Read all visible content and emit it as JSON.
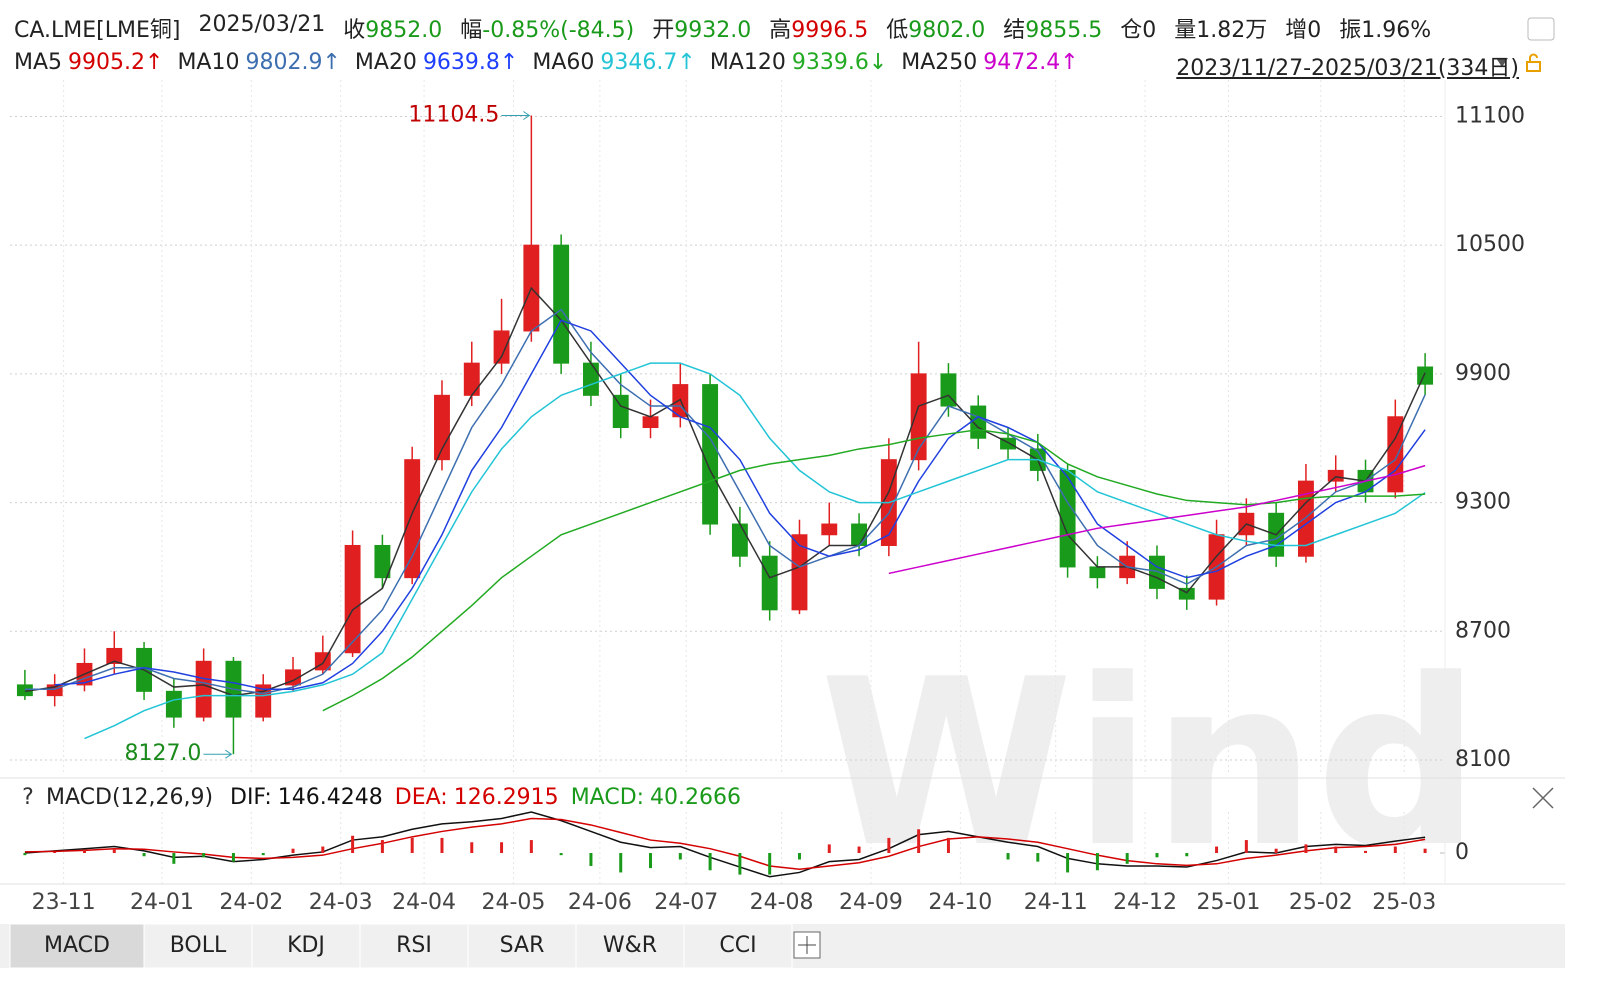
{
  "header": {
    "symbol": "CA.LME[LME铜]",
    "date": "2025/03/21",
    "quotes": [
      {
        "label": "收",
        "value": "9852.0",
        "color": "#1a9a1a"
      },
      {
        "label": "幅",
        "value": "-0.85%(-84.5)",
        "color": "#1a9a1a"
      },
      {
        "label": "开",
        "value": "9932.0",
        "color": "#1a9a1a"
      },
      {
        "label": "高",
        "value": "9996.5",
        "color": "#d40000"
      },
      {
        "label": "低",
        "value": "9802.0",
        "color": "#1a9a1a"
      },
      {
        "label": "结",
        "value": "9855.5",
        "color": "#1a9a1a"
      },
      {
        "label": "仓",
        "value": "0",
        "color": "#222222"
      },
      {
        "label": "量",
        "value": "1.82万",
        "color": "#222222"
      },
      {
        "label": "增",
        "value": "0",
        "color": "#222222"
      },
      {
        "label": "振",
        "value": "1.96%",
        "color": "#222222"
      }
    ],
    "range": "2023/11/27-2025/03/21(334日)",
    "watermark": "Wind",
    "help": "?"
  },
  "tabs": [
    "MACD",
    "BOLL",
    "KDJ",
    "RSI",
    "SAR",
    "W&R",
    "CCI"
  ],
  "chart_data": [
    {
      "type": "candlestick",
      "categories": [
        null,
        null,
        null,
        null,
        null,
        null,
        null,
        null,
        null,
        null,
        null,
        null,
        null,
        null,
        null,
        null,
        null,
        null,
        null,
        null,
        null,
        null,
        null,
        null,
        null,
        null,
        null,
        null,
        null,
        null,
        null,
        null,
        null,
        null,
        null,
        null,
        null,
        null,
        null,
        null,
        null,
        null,
        null,
        null,
        null,
        null,
        null,
        null
      ],
      "open": [
        8450,
        8400,
        8450,
        8550,
        8620,
        8420,
        8300,
        8560,
        8300,
        8450,
        8520,
        8600,
        9100,
        8950,
        9500,
        9800,
        9950,
        10100,
        10500,
        9950,
        9800,
        9650,
        9700,
        9850,
        9200,
        9050,
        8800,
        9150,
        9200,
        9100,
        9500,
        9900,
        9750,
        9600,
        9550,
        9450,
        9000,
        8950,
        9050,
        8900,
        8850,
        9150,
        9250,
        9050,
        9400,
        9450,
        9350,
        9932
      ],
      "high": [
        8520,
        8500,
        8620,
        8700,
        8650,
        8480,
        8620,
        8580,
        8500,
        8580,
        8680,
        9170,
        9150,
        9560,
        9870,
        10050,
        10250,
        11104.5,
        10550,
        10050,
        9900,
        9780,
        9950,
        9900,
        9280,
        9120,
        9220,
        9300,
        9250,
        9600,
        10050,
        9950,
        9800,
        9650,
        9620,
        9480,
        9050,
        9120,
        9100,
        8960,
        9220,
        9320,
        9300,
        9480,
        9520,
        9500,
        9780,
        9996.5
      ],
      "low": [
        8380,
        8350,
        8420,
        8500,
        8380,
        8250,
        8280,
        8127.0,
        8280,
        8420,
        8500,
        8580,
        8900,
        8920,
        9450,
        9750,
        9900,
        10050,
        9900,
        9750,
        9600,
        9600,
        9650,
        9150,
        9000,
        8750,
        8780,
        9100,
        9050,
        9050,
        9450,
        9700,
        9550,
        9500,
        9400,
        8950,
        8900,
        8920,
        8850,
        8800,
        8820,
        9100,
        9000,
        9020,
        9350,
        9300,
        9320,
        9802.0
      ],
      "close": [
        8400,
        8450,
        8550,
        8620,
        8420,
        8300,
        8560,
        8300,
        8450,
        8520,
        8600,
        9100,
        8950,
        9500,
        9800,
        9950,
        10100,
        10500,
        9950,
        9800,
        9650,
        9700,
        9850,
        9200,
        9050,
        8800,
        9150,
        9200,
        9100,
        9500,
        9900,
        9750,
        9600,
        9550,
        9450,
        9000,
        8950,
        9050,
        8900,
        8850,
        9150,
        9250,
        9050,
        9400,
        9450,
        9350,
        9700,
        9852
      ],
      "up_color": "#e02020",
      "down_color": "#1a9a1a",
      "annotations": [
        {
          "text": "11104.5",
          "color": "#c00000"
        },
        {
          "text": "8127.0",
          "color": "#1a8a1a"
        }
      ],
      "series": [
        {
          "name": "MA5",
          "color": "#d40000",
          "line_color": "#333333",
          "value_label": "9905.2↑",
          "values": [
            8420,
            8440,
            8500,
            8560,
            8520,
            8440,
            8450,
            8400,
            8420,
            8470,
            8550,
            8800,
            8900,
            9250,
            9550,
            9800,
            9980,
            10300,
            10150,
            9950,
            9750,
            9700,
            9780,
            9450,
            9200,
            8950,
            9000,
            9100,
            9100,
            9350,
            9750,
            9800,
            9650,
            9580,
            9500,
            9150,
            9000,
            9000,
            8950,
            8880,
            9050,
            9200,
            9150,
            9300,
            9420,
            9400,
            9600,
            9905.2
          ]
        },
        {
          "name": "MA10",
          "color": "#3d6fb0",
          "line_color": "#3d6fb0",
          "value_label": "9802.9↑",
          "values": [
            8430,
            8430,
            8480,
            8530,
            8530,
            8480,
            8460,
            8430,
            8410,
            8440,
            8500,
            8650,
            8800,
            9050,
            9350,
            9650,
            9850,
            10100,
            10200,
            10000,
            9850,
            9750,
            9750,
            9600,
            9350,
            9100,
            9000,
            9050,
            9100,
            9250,
            9550,
            9750,
            9700,
            9620,
            9540,
            9300,
            9100,
            9000,
            8980,
            8920,
            9000,
            9100,
            9130,
            9230,
            9350,
            9400,
            9500,
            9802.9
          ]
        },
        {
          "name": "MA20",
          "color": "#1f3fff",
          "line_color": "#2040e0",
          "value_label": "9639.8↑",
          "values": [
            null,
            8450,
            8460,
            8500,
            8530,
            8510,
            8480,
            8460,
            8430,
            8430,
            8460,
            8550,
            8700,
            8900,
            9150,
            9450,
            9650,
            9900,
            10150,
            10100,
            9950,
            9800,
            9700,
            9650,
            9500,
            9250,
            9100,
            9050,
            9080,
            9150,
            9400,
            9600,
            9700,
            9650,
            9580,
            9420,
            9200,
            9100,
            9000,
            8950,
            8980,
            9050,
            9100,
            9200,
            9300,
            9350,
            9450,
            9639.8
          ]
        },
        {
          "name": "MA60",
          "color": "#22c4d6",
          "line_color": "#22c4d6",
          "value_label": "9346.7↑",
          "values": [
            null,
            null,
            8200,
            8260,
            8330,
            8380,
            8400,
            8400,
            8400,
            8420,
            8450,
            8500,
            8600,
            8850,
            9100,
            9350,
            9550,
            9700,
            9800,
            9850,
            9900,
            9950,
            9950,
            9900,
            9800,
            9600,
            9450,
            9350,
            9300,
            9300,
            9350,
            9400,
            9450,
            9500,
            9500,
            9450,
            9350,
            9300,
            9250,
            9200,
            9150,
            9120,
            9100,
            9100,
            9150,
            9200,
            9250,
            9346.7
          ]
        },
        {
          "name": "MA120",
          "color": "#22aa22",
          "line_color": "#22aa22",
          "value_label": "9339.6↓",
          "values": [
            null,
            null,
            null,
            null,
            null,
            null,
            null,
            null,
            null,
            null,
            8330,
            8400,
            8480,
            8580,
            8700,
            8820,
            8950,
            9050,
            9150,
            9200,
            9250,
            9300,
            9350,
            9400,
            9450,
            9480,
            9500,
            9520,
            9550,
            9570,
            9600,
            9620,
            9640,
            9620,
            9580,
            9480,
            9420,
            9380,
            9340,
            9310,
            9300,
            9290,
            9300,
            9320,
            9330,
            9330,
            9330,
            9339.6
          ]
        },
        {
          "name": "MA250",
          "color": "#cc00cc",
          "line_color": "#cc00cc",
          "value_label": "9472.4↑",
          "values": [
            null,
            null,
            null,
            null,
            null,
            null,
            null,
            null,
            null,
            null,
            null,
            null,
            null,
            null,
            null,
            null,
            null,
            null,
            null,
            null,
            null,
            null,
            null,
            null,
            null,
            null,
            null,
            null,
            null,
            8970,
            9000,
            9030,
            9060,
            9090,
            9120,
            9150,
            9180,
            9200,
            9220,
            9240,
            9260,
            9280,
            9310,
            9340,
            9370,
            9400,
            9430,
            9472.4
          ]
        }
      ],
      "xlim": [
        -0.5,
        47.5
      ],
      "ylim": [
        8030,
        11270
      ],
      "yticks": [
        8100,
        8700,
        9300,
        9900,
        10500,
        11100
      ],
      "grid": true
    },
    {
      "type": "macd",
      "title": "MACD(12,26,9)",
      "categories": [
        null,
        null,
        null,
        null,
        null,
        null,
        null,
        null,
        null,
        null,
        null,
        null,
        null,
        null,
        null,
        null,
        null,
        null,
        null,
        null,
        null,
        null,
        null,
        null,
        null,
        null,
        null,
        null,
        null,
        null,
        null,
        null,
        null,
        null,
        null,
        null,
        null,
        null,
        null,
        null,
        null,
        null,
        null,
        null,
        null,
        null,
        null,
        null
      ],
      "series": [
        {
          "name": "DIF:",
          "color": "#111111",
          "values": [
            0,
            20,
            40,
            60,
            20,
            -40,
            -30,
            -80,
            -60,
            -20,
            10,
            120,
            150,
            220,
            270,
            290,
            320,
            380,
            300,
            200,
            100,
            50,
            60,
            -40,
            -130,
            -220,
            -180,
            -80,
            -60,
            40,
            170,
            200,
            150,
            100,
            60,
            -50,
            -100,
            -120,
            -120,
            -130,
            -70,
            10,
            0,
            60,
            80,
            70,
            110,
            146.4248
          ]
        },
        {
          "name": "DEA:",
          "color": "#d40000",
          "values": [
            10,
            15,
            25,
            40,
            35,
            10,
            -10,
            -40,
            -50,
            -40,
            -20,
            40,
            90,
            150,
            200,
            240,
            270,
            320,
            310,
            260,
            190,
            120,
            90,
            40,
            -30,
            -120,
            -150,
            -120,
            -90,
            -30,
            60,
            130,
            150,
            130,
            100,
            40,
            -20,
            -70,
            -100,
            -115,
            -100,
            -50,
            -20,
            20,
            50,
            60,
            80,
            126.2915
          ]
        },
        {
          "name": "MACD:",
          "color": "#1a9a1a",
          "type": "bar",
          "values": [
            -20,
            10,
            30,
            40,
            -30,
            -100,
            -40,
            -80,
            -20,
            40,
            60,
            160,
            120,
            140,
            140,
            100,
            100,
            120,
            -20,
            -120,
            -180,
            -140,
            -60,
            -160,
            -200,
            -200,
            -60,
            80,
            60,
            140,
            220,
            140,
            0,
            -60,
            -80,
            -180,
            -160,
            -100,
            -40,
            -30,
            60,
            120,
            40,
            80,
            60,
            20,
            60,
            40.2666
          ]
        }
      ],
      "up_color": "#e02020",
      "down_color": "#1a9a1a",
      "xlim": [
        -0.5,
        47.5
      ],
      "ylim": [
        -250,
        380
      ],
      "yticks": [
        0
      ],
      "xticks": [
        {
          "value": 1.3,
          "label": "23-11"
        },
        {
          "value": 4.6,
          "label": "24-01"
        },
        {
          "value": 7.6,
          "label": "24-02"
        },
        {
          "value": 10.6,
          "label": "24-03"
        },
        {
          "value": 13.4,
          "label": "24-04"
        },
        {
          "value": 16.4,
          "label": "24-05"
        },
        {
          "value": 19.3,
          "label": "24-06"
        },
        {
          "value": 22.2,
          "label": "24-07"
        },
        {
          "value": 25.4,
          "label": "24-08"
        },
        {
          "value": 28.4,
          "label": "24-09"
        },
        {
          "value": 31.4,
          "label": "24-10"
        },
        {
          "value": 34.6,
          "label": "24-11"
        },
        {
          "value": 37.6,
          "label": "24-12"
        },
        {
          "value": 40.4,
          "label": "25-01"
        },
        {
          "value": 43.5,
          "label": "25-02"
        },
        {
          "value": 46.3,
          "label": "25-03"
        }
      ],
      "grid": true
    }
  ]
}
